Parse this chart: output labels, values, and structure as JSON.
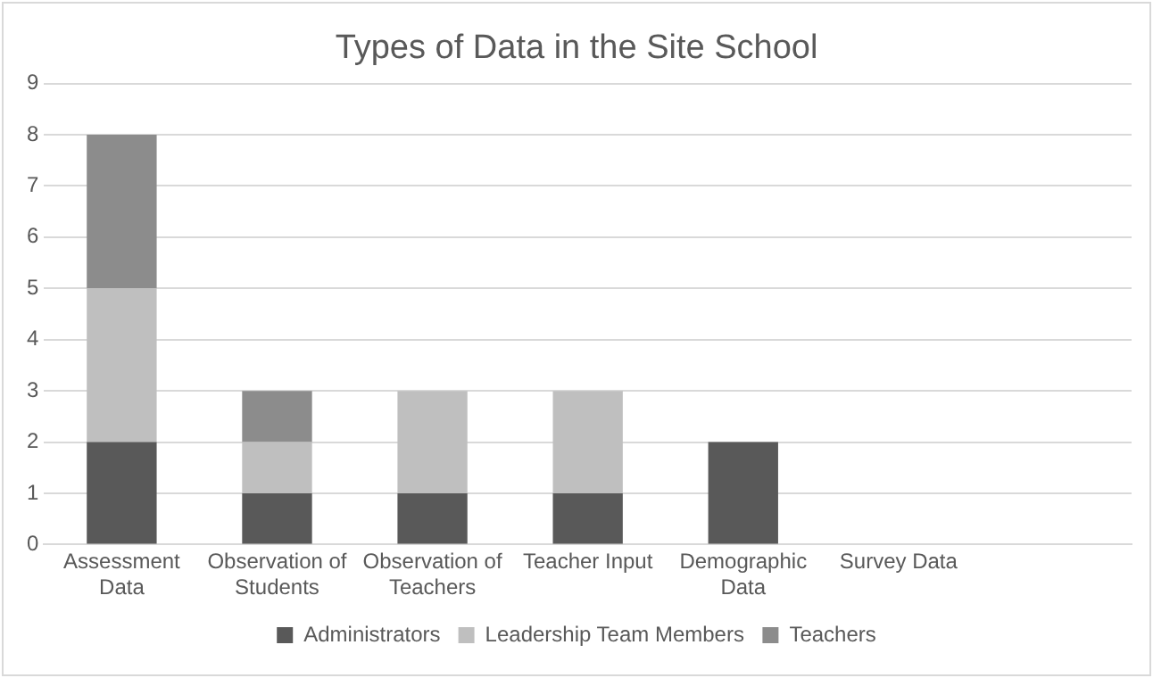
{
  "chart_data": {
    "type": "bar",
    "title": "Types of Data in the Site School",
    "stacked": true,
    "grid": "y",
    "legend": "bottom",
    "categories": [
      "Assessment Data",
      "Observation of Students",
      "Observation of Teachers",
      "Teacher Input",
      "Demographic Data",
      "Survey Data",
      null
    ],
    "series": [
      {
        "name": "Administrators",
        "color": "#595959",
        "values": [
          2,
          1,
          1,
          1,
          2,
          0,
          0
        ]
      },
      {
        "name": "Leadership Team Members",
        "color": "#bfbfbf",
        "values": [
          3,
          1,
          2,
          2,
          0,
          0,
          0
        ]
      },
      {
        "name": "Teachers",
        "color": "#8c8c8c",
        "values": [
          3,
          1,
          0,
          0,
          0,
          0,
          0
        ]
      }
    ],
    "ylim": [
      0,
      9
    ],
    "yticks": [
      0,
      1,
      2,
      3,
      4,
      5,
      6,
      7,
      8,
      9
    ]
  }
}
